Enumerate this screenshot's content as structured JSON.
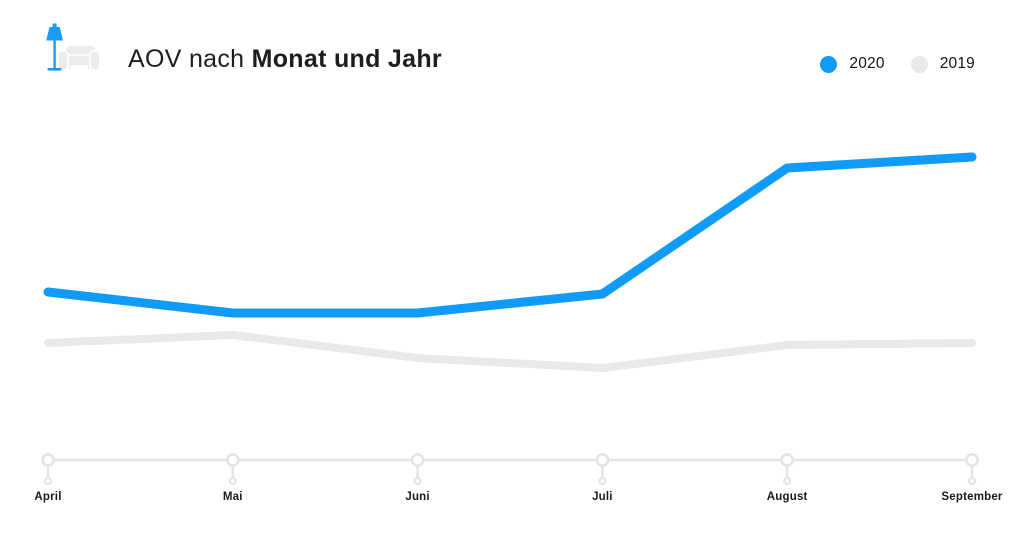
{
  "header": {
    "title_regular": "AOV nach",
    "title_bold": "Monat und Jahr",
    "logo_lamp_color": "#1c9bf5",
    "logo_sofa_color": "#ececec"
  },
  "legend": [
    {
      "label": "2020",
      "color": "#119bf9"
    },
    {
      "label": "2019",
      "color": "#e8e8e8"
    }
  ],
  "chart_data": {
    "type": "line",
    "title": "AOV nach Monat und Jahr",
    "categories": [
      "April",
      "Mai",
      "Juni",
      "Juli",
      "August",
      "September"
    ],
    "series": [
      {
        "name": "2020",
        "color": "#119bf9",
        "values": [
          168,
          147,
          147,
          166,
          292,
          303
        ]
      },
      {
        "name": "2019",
        "color": "#e9e9e9",
        "values": [
          117,
          125,
          102,
          92,
          115,
          117
        ]
      }
    ],
    "xlabel": "",
    "ylabel": "",
    "units": "relative AOV index (no y-axis labels shown in chart)",
    "ylim": [
      0,
      330
    ],
    "grid": false,
    "y_axis_visible": false,
    "legend_position": "top-right",
    "axis_line_color": "#e4e4e4",
    "tick_label_color": "#1a1a1a"
  }
}
